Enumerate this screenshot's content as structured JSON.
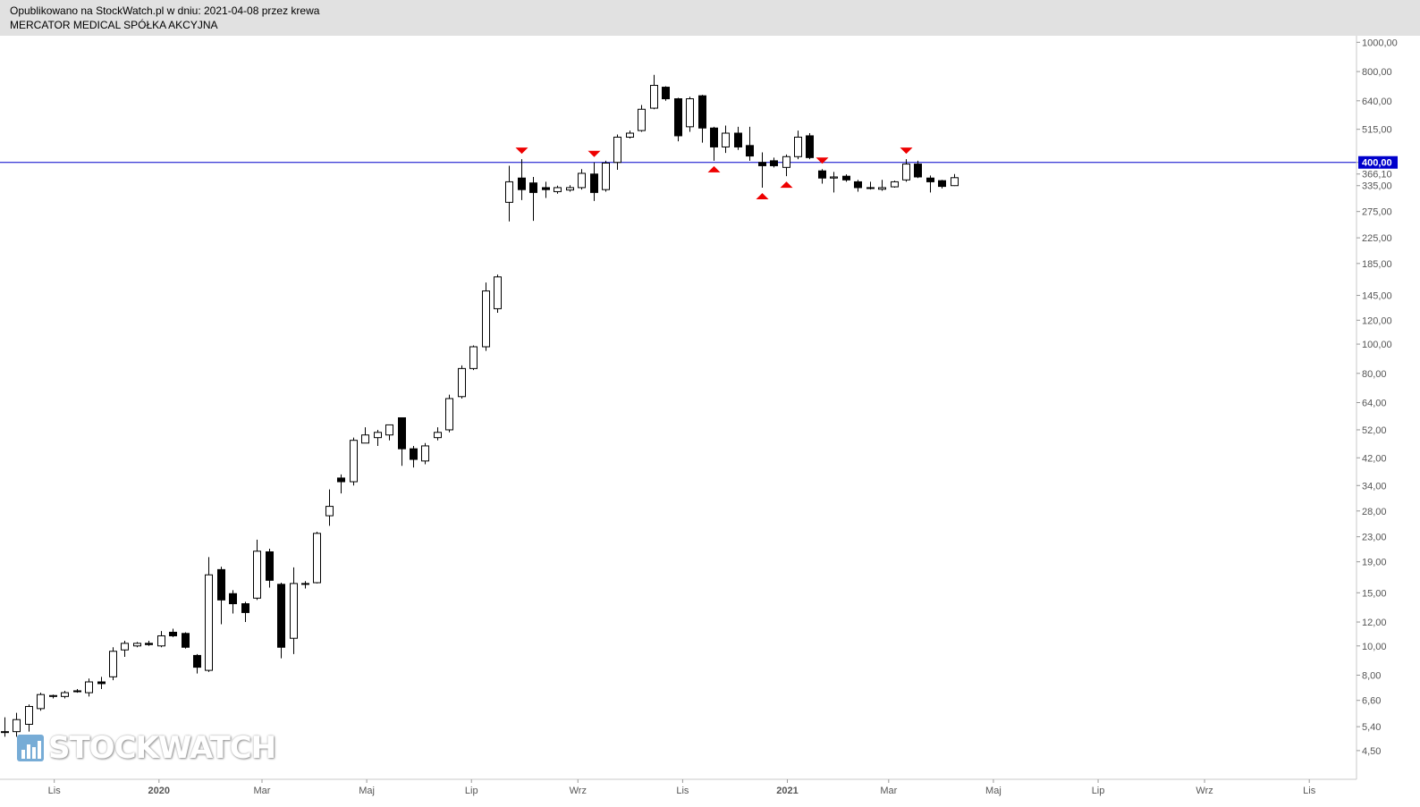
{
  "header": {
    "line1": "Opublikowano na StockWatch.pl w dniu: 2021-04-08 przez krewa",
    "line2": "MERCATOR MEDICAL SPÓŁKA AKCYJNA"
  },
  "watermark": {
    "text": "STOCKWATCH",
    "icon": "bar-chart-icon"
  },
  "colors": {
    "up_body": "#ffffff",
    "down_body": "#000000",
    "level_line": "#0000cc",
    "markers": "#ee0000",
    "axis_text": "#555555"
  },
  "chart_data": {
    "type": "candlestick",
    "scale": "log",
    "ylim": [
      4.2,
      1030
    ],
    "y_ticks": [
      "1000,00",
      "800,00",
      "640,00",
      "515,00",
      "400,00",
      "366,10",
      "335,00",
      "275,00",
      "225,00",
      "185,00",
      "145,00",
      "120,00",
      "100,00",
      "80,00",
      "64,00",
      "52,00",
      "42,00",
      "34,00",
      "28,00",
      "23,00",
      "19,00",
      "15,00",
      "12,00",
      "10,00",
      "8,00",
      "6,60",
      "5,40",
      "4,50"
    ],
    "highlight_ticks": [
      "400,00"
    ],
    "x_ticks": [
      {
        "date": "2019-11-01",
        "label": "Lis"
      },
      {
        "date": "2020-01-01",
        "label": "2020"
      },
      {
        "date": "2020-03-01",
        "label": "Mar"
      },
      {
        "date": "2020-05-01",
        "label": "Maj"
      },
      {
        "date": "2020-07-01",
        "label": "Lip"
      },
      {
        "date": "2020-09-01",
        "label": "Wrz"
      },
      {
        "date": "2020-11-01",
        "label": "Lis"
      },
      {
        "date": "2021-01-01",
        "label": "2021"
      },
      {
        "date": "2021-03-01",
        "label": "Mar"
      },
      {
        "date": "2021-05-01",
        "label": "Maj"
      },
      {
        "date": "2021-07-01",
        "label": "Lip"
      },
      {
        "date": "2021-09-01",
        "label": "Wrz"
      },
      {
        "date": "2021-11-01",
        "label": "Lis"
      }
    ],
    "horizontal_line": {
      "value": 400,
      "label": "400,00"
    },
    "candles": [
      {
        "date": "2019-10-03",
        "o": 5.2,
        "h": 5.8,
        "l": 5.0,
        "c": 5.2
      },
      {
        "date": "2019-10-10",
        "o": 5.2,
        "h": 6.0,
        "l": 5.0,
        "c": 5.7
      },
      {
        "date": "2019-10-17",
        "o": 5.5,
        "h": 6.4,
        "l": 5.2,
        "c": 6.3
      },
      {
        "date": "2019-10-24",
        "o": 6.2,
        "h": 7.0,
        "l": 6.1,
        "c": 6.9
      },
      {
        "date": "2019-10-31",
        "o": 6.8,
        "h": 6.9,
        "l": 6.7,
        "c": 6.85
      },
      {
        "date": "2019-11-07",
        "o": 6.8,
        "h": 7.1,
        "l": 6.7,
        "c": 7.0
      },
      {
        "date": "2019-11-14",
        "o": 7.1,
        "h": 7.2,
        "l": 7.0,
        "c": 7.05
      },
      {
        "date": "2019-11-21",
        "o": 7.0,
        "h": 7.8,
        "l": 6.8,
        "c": 7.6
      },
      {
        "date": "2019-11-28",
        "o": 7.6,
        "h": 7.9,
        "l": 7.2,
        "c": 7.5
      },
      {
        "date": "2019-12-05",
        "o": 7.9,
        "h": 9.9,
        "l": 7.7,
        "c": 9.6
      },
      {
        "date": "2019-12-12",
        "o": 9.7,
        "h": 10.4,
        "l": 9.2,
        "c": 10.2
      },
      {
        "date": "2019-12-19",
        "o": 10.0,
        "h": 10.3,
        "l": 9.9,
        "c": 10.2
      },
      {
        "date": "2019-12-26",
        "o": 10.2,
        "h": 10.4,
        "l": 10.0,
        "c": 10.1
      },
      {
        "date": "2020-01-02",
        "o": 10.0,
        "h": 11.2,
        "l": 9.9,
        "c": 10.8
      },
      {
        "date": "2020-01-09",
        "o": 11.1,
        "h": 11.4,
        "l": 10.7,
        "c": 10.8
      },
      {
        "date": "2020-01-16",
        "o": 11.0,
        "h": 11.1,
        "l": 9.8,
        "c": 9.9
      },
      {
        "date": "2020-01-23",
        "o": 9.3,
        "h": 9.4,
        "l": 8.1,
        "c": 8.5
      },
      {
        "date": "2020-01-30",
        "o": 8.3,
        "h": 19.7,
        "l": 8.2,
        "c": 17.2
      },
      {
        "date": "2020-02-06",
        "o": 17.9,
        "h": 18.3,
        "l": 11.8,
        "c": 14.2
      },
      {
        "date": "2020-02-13",
        "o": 14.9,
        "h": 15.3,
        "l": 12.8,
        "c": 13.8
      },
      {
        "date": "2020-02-20",
        "o": 13.8,
        "h": 14.0,
        "l": 12.0,
        "c": 12.9
      },
      {
        "date": "2020-02-27",
        "o": 14.4,
        "h": 22.5,
        "l": 14.2,
        "c": 20.6
      },
      {
        "date": "2020-03-05",
        "o": 20.5,
        "h": 21.0,
        "l": 15.6,
        "c": 16.5
      },
      {
        "date": "2020-03-12",
        "o": 16.0,
        "h": 16.2,
        "l": 9.1,
        "c": 9.9
      },
      {
        "date": "2020-03-19",
        "o": 10.6,
        "h": 18.2,
        "l": 9.4,
        "c": 16.1
      },
      {
        "date": "2020-03-26",
        "o": 16.0,
        "h": 16.4,
        "l": 15.5,
        "c": 16.1
      },
      {
        "date": "2020-04-02",
        "o": 16.2,
        "h": 23.9,
        "l": 16.1,
        "c": 23.6
      },
      {
        "date": "2020-04-09",
        "o": 27.0,
        "h": 33.0,
        "l": 25.0,
        "c": 29.0
      },
      {
        "date": "2020-04-16",
        "o": 36.0,
        "h": 37.0,
        "l": 32.0,
        "c": 35.0
      },
      {
        "date": "2020-04-23",
        "o": 35.0,
        "h": 49.0,
        "l": 34.0,
        "c": 48.0
      },
      {
        "date": "2020-04-30",
        "o": 47.0,
        "h": 53.0,
        "l": 47.0,
        "c": 50.0
      },
      {
        "date": "2020-05-07",
        "o": 49.0,
        "h": 52.0,
        "l": 46.0,
        "c": 51.0
      },
      {
        "date": "2020-05-14",
        "o": 50.0,
        "h": 54.0,
        "l": 48.0,
        "c": 54.0
      },
      {
        "date": "2020-05-21",
        "o": 57.0,
        "h": 57.0,
        "l": 39.5,
        "c": 45.0
      },
      {
        "date": "2020-05-28",
        "o": 45.0,
        "h": 46.0,
        "l": 39.0,
        "c": 41.5
      },
      {
        "date": "2020-06-04",
        "o": 41.0,
        "h": 47.0,
        "l": 40.0,
        "c": 46.0
      },
      {
        "date": "2020-06-11",
        "o": 49.0,
        "h": 53.0,
        "l": 48.0,
        "c": 51.0
      },
      {
        "date": "2020-06-18",
        "o": 52.0,
        "h": 68.0,
        "l": 51.0,
        "c": 66.0
      },
      {
        "date": "2020-06-25",
        "o": 67.0,
        "h": 85.0,
        "l": 66.0,
        "c": 83.0
      },
      {
        "date": "2020-07-02",
        "o": 83.0,
        "h": 99.0,
        "l": 82.0,
        "c": 98.0
      },
      {
        "date": "2020-07-09",
        "o": 98.0,
        "h": 160.0,
        "l": 95.0,
        "c": 150.0
      },
      {
        "date": "2020-07-16",
        "o": 131.0,
        "h": 170.0,
        "l": 127.0,
        "c": 167.0
      },
      {
        "date": "2020-07-23",
        "o": 295.0,
        "h": 390.0,
        "l": 255.0,
        "c": 345.0
      },
      {
        "date": "2020-07-30",
        "o": 355.0,
        "h": 410.0,
        "l": 300.0,
        "c": 325.0
      },
      {
        "date": "2020-08-06",
        "o": 342.0,
        "h": 358.0,
        "l": 256.0,
        "c": 318.0
      },
      {
        "date": "2020-08-13",
        "o": 330.0,
        "h": 345.0,
        "l": 305.0,
        "c": 325.0
      },
      {
        "date": "2020-08-20",
        "o": 320.0,
        "h": 335.0,
        "l": 315.0,
        "c": 330.0
      },
      {
        "date": "2020-08-27",
        "o": 324.0,
        "h": 336.0,
        "l": 320.0,
        "c": 330.0
      },
      {
        "date": "2020-09-03",
        "o": 330.0,
        "h": 380.0,
        "l": 325.0,
        "c": 368.0
      },
      {
        "date": "2020-09-10",
        "o": 366.0,
        "h": 400.0,
        "l": 298.0,
        "c": 318.0
      },
      {
        "date": "2020-09-17",
        "o": 325.0,
        "h": 405.0,
        "l": 320.0,
        "c": 398.0
      },
      {
        "date": "2020-09-24",
        "o": 400.0,
        "h": 495.0,
        "l": 378.0,
        "c": 485.0
      },
      {
        "date": "2020-10-01",
        "o": 485.0,
        "h": 510.0,
        "l": 480.0,
        "c": 500.0
      },
      {
        "date": "2020-10-08",
        "o": 510.0,
        "h": 620.0,
        "l": 505.0,
        "c": 600.0
      },
      {
        "date": "2020-10-15",
        "o": 605.0,
        "h": 780.0,
        "l": 600.0,
        "c": 720.0
      },
      {
        "date": "2020-10-22",
        "o": 710.0,
        "h": 715.0,
        "l": 640.0,
        "c": 650.0
      },
      {
        "date": "2020-10-29",
        "o": 650.0,
        "h": 655.0,
        "l": 470.0,
        "c": 490.0
      },
      {
        "date": "2020-11-05",
        "o": 525.0,
        "h": 660.0,
        "l": 505.0,
        "c": 650.0
      },
      {
        "date": "2020-11-12",
        "o": 665.0,
        "h": 670.0,
        "l": 465.0,
        "c": 520.0
      },
      {
        "date": "2020-11-19",
        "o": 520.0,
        "h": 525.0,
        "l": 405.0,
        "c": 450.0
      },
      {
        "date": "2020-11-26",
        "o": 450.0,
        "h": 530.0,
        "l": 430.0,
        "c": 500.0
      },
      {
        "date": "2020-12-03",
        "o": 500.0,
        "h": 525.0,
        "l": 440.0,
        "c": 450.0
      },
      {
        "date": "2020-12-10",
        "o": 455.0,
        "h": 525.0,
        "l": 405.0,
        "c": 420.0
      },
      {
        "date": "2020-12-17",
        "o": 400.0,
        "h": 432.0,
        "l": 330.0,
        "c": 390.0
      },
      {
        "date": "2020-12-24",
        "o": 405.0,
        "h": 415.0,
        "l": 385.0,
        "c": 390.0
      },
      {
        "date": "2020-12-31",
        "o": 385.0,
        "h": 425.0,
        "l": 360.0,
        "c": 418.0
      },
      {
        "date": "2021-01-07",
        "o": 418.0,
        "h": 510.0,
        "l": 410.0,
        "c": 485.0
      },
      {
        "date": "2021-01-14",
        "o": 490.0,
        "h": 500.0,
        "l": 410.0,
        "c": 415.0
      },
      {
        "date": "2021-01-21",
        "o": 375.0,
        "h": 380.0,
        "l": 340.0,
        "c": 355.0
      },
      {
        "date": "2021-01-28",
        "o": 355.0,
        "h": 372.0,
        "l": 318.0,
        "c": 358.0
      },
      {
        "date": "2021-02-04",
        "o": 360.0,
        "h": 365.0,
        "l": 345.0,
        "c": 350.0
      },
      {
        "date": "2021-02-11",
        "o": 345.0,
        "h": 350.0,
        "l": 320.0,
        "c": 330.0
      },
      {
        "date": "2021-02-18",
        "o": 330.0,
        "h": 345.0,
        "l": 325.0,
        "c": 328.0
      },
      {
        "date": "2021-02-25",
        "o": 326.0,
        "h": 350.0,
        "l": 322.0,
        "c": 330.0
      },
      {
        "date": "2021-03-04",
        "o": 332.0,
        "h": 348.0,
        "l": 330.0,
        "c": 345.0
      },
      {
        "date": "2021-03-11",
        "o": 350.0,
        "h": 410.0,
        "l": 345.0,
        "c": 395.0
      },
      {
        "date": "2021-03-18",
        "o": 395.0,
        "h": 405.0,
        "l": 355.0,
        "c": 358.0
      },
      {
        "date": "2021-03-25",
        "o": 355.0,
        "h": 362.0,
        "l": 318.0,
        "c": 345.0
      },
      {
        "date": "2021-04-01",
        "o": 348.0,
        "h": 350.0,
        "l": 328.0,
        "c": 333.0
      },
      {
        "date": "2021-04-08",
        "o": 335.0,
        "h": 366.0,
        "l": 334.0,
        "c": 356.0
      }
    ],
    "markers": [
      {
        "date": "2020-07-30",
        "type": "down",
        "value": 410
      },
      {
        "date": "2020-09-10",
        "type": "down",
        "value": 400
      },
      {
        "date": "2020-11-19",
        "type": "up",
        "value": 405
      },
      {
        "date": "2020-12-17",
        "type": "up",
        "value": 330
      },
      {
        "date": "2020-12-31",
        "type": "up",
        "value": 360
      },
      {
        "date": "2021-01-21",
        "type": "down",
        "value": 380
      },
      {
        "date": "2021-03-11",
        "type": "down",
        "value": 410
      }
    ]
  }
}
